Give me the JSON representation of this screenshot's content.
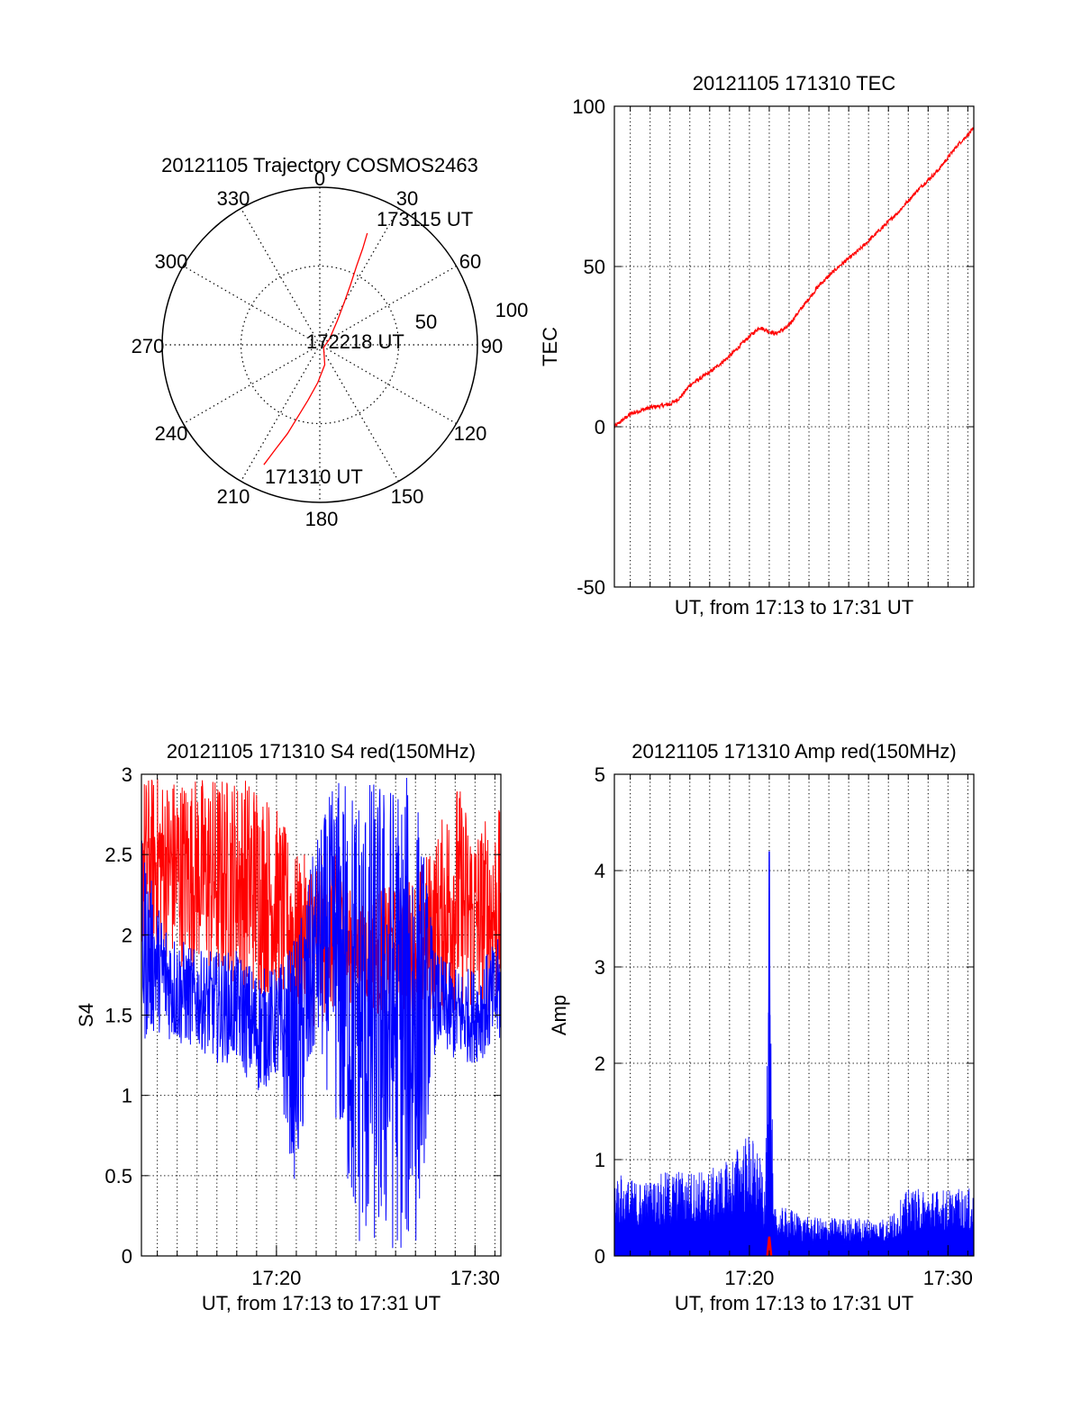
{
  "colors": {
    "red": "#ff0000",
    "blue": "#0000ff",
    "axis": "#000000",
    "grid": "#000000"
  },
  "chart_data": [
    {
      "id": "trajectory",
      "type": "polar",
      "title": "20121105 Trajectory COSMOS2463",
      "azimuth_labels": [
        "0",
        "30",
        "60",
        "90",
        "120",
        "150",
        "180",
        "210",
        "240",
        "270",
        "300",
        "330"
      ],
      "radial_labels": [
        "50",
        "100"
      ],
      "radial_max": 100,
      "grid": true,
      "series": [
        {
          "color": "#ff0000",
          "points": [
            {
              "az": 205,
              "r": 84
            },
            {
              "az": 203,
              "r": 72
            },
            {
              "az": 200,
              "r": 60
            },
            {
              "az": 197,
              "r": 48
            },
            {
              "az": 192,
              "r": 36
            },
            {
              "az": 183,
              "r": 24
            },
            {
              "az": 166,
              "r": 13
            },
            {
              "az": 125,
              "r": 3
            },
            {
              "az": 60,
              "r": 7
            },
            {
              "az": 36,
              "r": 19
            },
            {
              "az": 30,
              "r": 31
            },
            {
              "az": 27,
              "r": 43
            },
            {
              "az": 25,
              "r": 55
            },
            {
              "az": 24,
              "r": 67
            },
            {
              "az": 23,
              "r": 77
            }
          ]
        }
      ],
      "annotations": [
        {
          "text": "173115 UT",
          "az": 25,
          "r": 86
        },
        {
          "text": "172218 UT",
          "az": 85,
          "r": 20
        },
        {
          "text": "171310 UT",
          "az": 185,
          "r": 84
        }
      ]
    },
    {
      "id": "tec",
      "type": "line",
      "title": "20121105 171310 TEC",
      "xlabel": "UT, from 17:13 to 17:31 UT",
      "ylabel": "TEC",
      "xlim": [
        13.2,
        31.3
      ],
      "ylim": [
        -50,
        100
      ],
      "yticks": [
        -50,
        0,
        50,
        100
      ],
      "grid": true,
      "series": [
        {
          "color": "#ff0000",
          "x": [
            13.2,
            14.0,
            15.0,
            16.0,
            16.5,
            17.0,
            18.0,
            19.0,
            19.8,
            20.5,
            21.3,
            21.9,
            22.5,
            23.5,
            24.5,
            25.5,
            26.5,
            27.5,
            28.5,
            29.5,
            30.5,
            31.3
          ],
          "y": [
            0,
            4,
            6,
            7,
            9,
            13,
            17,
            22,
            27,
            31,
            29,
            31,
            36,
            44,
            50,
            55,
            61,
            67,
            74,
            80,
            88,
            93
          ]
        }
      ]
    },
    {
      "id": "s4",
      "type": "line",
      "title": "20121105 171310 S4 red(150MHz)",
      "xlabel": "UT, from 17:13 to 17:31 UT",
      "ylabel": "S4",
      "xlim": [
        13.2,
        31.3
      ],
      "ylim": [
        0,
        3
      ],
      "yticks": [
        0,
        0.5,
        1,
        1.5,
        2,
        2.5,
        3
      ],
      "ytick_labels": [
        "0",
        "0.5",
        "1",
        "1.5",
        "2",
        "2.5",
        "3"
      ],
      "xticks": [
        20,
        30
      ],
      "xtick_labels": [
        "17:20",
        "17:30"
      ],
      "grid": true,
      "series": [
        {
          "color": "#ff0000",
          "x": [
            13.2,
            14.0,
            15.0,
            16.0,
            17.0,
            18.0,
            19.0,
            20.0,
            21.0,
            22.0,
            23.0,
            24.0,
            25.0,
            26.0,
            27.0,
            28.0,
            29.0,
            30.0,
            31.3
          ],
          "low": [
            1.9,
            1.9,
            1.8,
            1.8,
            1.7,
            1.7,
            1.6,
            1.6,
            1.5,
            1.4,
            1.5,
            1.6,
            1.5,
            1.5,
            1.5,
            1.5,
            1.5,
            1.5,
            1.5
          ],
          "high": [
            3.0,
            3.0,
            3.0,
            3.0,
            3.0,
            3.0,
            3.0,
            2.8,
            2.5,
            2.5,
            2.5,
            2.2,
            2.3,
            2.3,
            2.4,
            2.6,
            3.0,
            2.7,
            2.8
          ]
        },
        {
          "color": "#0000ff",
          "x": [
            13.2,
            14.0,
            15.0,
            16.0,
            17.0,
            18.0,
            19.0,
            20.0,
            21.0,
            22.0,
            23.0,
            24.0,
            25.0,
            26.0,
            27.0,
            28.0,
            29.0,
            30.0,
            31.3
          ],
          "low": [
            1.3,
            1.4,
            1.3,
            1.3,
            1.2,
            1.2,
            1.0,
            1.1,
            0.4,
            1.3,
            0.8,
            0.0,
            0.0,
            0.0,
            0.0,
            1.3,
            1.2,
            1.2,
            1.3
          ],
          "high": [
            2.6,
            2.2,
            2.0,
            1.9,
            1.9,
            1.9,
            1.8,
            1.8,
            2.0,
            2.6,
            3.0,
            3.0,
            3.0,
            3.0,
            3.0,
            1.9,
            1.8,
            1.8,
            2.0
          ]
        }
      ]
    },
    {
      "id": "amp",
      "type": "area",
      "title": "20121105 171310 Amp red(150MHz)",
      "xlabel": "UT, from 17:13 to 17:31 UT",
      "ylabel": "Amp",
      "xlim": [
        13.2,
        31.3
      ],
      "ylim": [
        0,
        5
      ],
      "yticks": [
        0,
        1,
        2,
        3,
        4,
        5
      ],
      "xticks": [
        20,
        30
      ],
      "xtick_labels": [
        "17:20",
        "17:30"
      ],
      "grid": true,
      "series": [
        {
          "color": "#0000ff",
          "x": [
            13.2,
            14.0,
            15.0,
            16.0,
            17.0,
            18.0,
            19.0,
            19.5,
            20.0,
            20.5,
            20.8,
            21.0,
            21.2,
            22.0,
            23.0,
            24.0,
            25.0,
            26.0,
            27.0,
            28.0,
            29.0,
            30.0,
            31.3
          ],
          "y": [
            0.9,
            0.8,
            0.8,
            0.9,
            0.9,
            0.9,
            1.0,
            1.2,
            1.3,
            1.1,
            0.6,
            4.2,
            0.5,
            0.5,
            0.4,
            0.4,
            0.4,
            0.4,
            0.4,
            0.7,
            0.7,
            0.7,
            0.7
          ]
        },
        {
          "color": "#ff0000",
          "x": [
            20.9,
            21.0,
            21.1
          ],
          "y": [
            0.0,
            0.2,
            0.0
          ]
        }
      ]
    }
  ]
}
